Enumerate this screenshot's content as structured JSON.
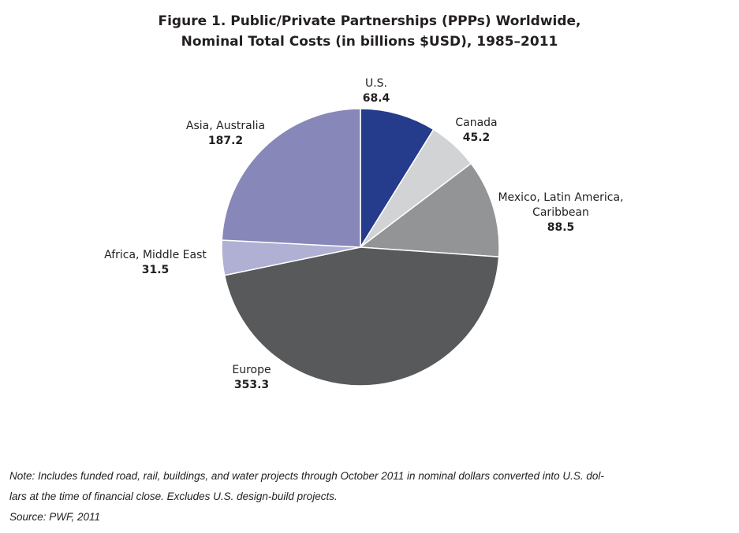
{
  "chart_data": {
    "type": "pie",
    "title_line1": "Figure 1. Public/Private Partnerships (PPPs) Worldwide,",
    "title_line2": "Nominal Total Costs (in billions $USD), 1985–2011",
    "start": "12 o'clock, clockwise",
    "slices": [
      {
        "label": "U.S.",
        "value": 68.4,
        "value_text": "68.4",
        "color": "#253b8b"
      },
      {
        "label": "Canada",
        "value": 45.2,
        "value_text": "45.2",
        "color": "#d2d3d5"
      },
      {
        "label": "Mexico, Latin America, Caribbean",
        "label_line1": "Mexico, Latin America,",
        "label_line2": "Caribbean",
        "value": 88.5,
        "value_text": "88.5",
        "color": "#939496"
      },
      {
        "label": "Europe",
        "value": 353.3,
        "value_text": "353.3",
        "color": "#58595b"
      },
      {
        "label": "Africa, Middle East",
        "value": 31.5,
        "value_text": "31.5",
        "color": "#b0b0d4"
      },
      {
        "label": "Asia, Australia",
        "value": 187.2,
        "value_text": "187.2",
        "color": "#8788b9"
      }
    ]
  },
  "note": {
    "line1": "Note: Includes funded road, rail, buildings, and water projects through October 2011 in nominal dollars converted into U.S. dol-",
    "line2": "lars at the time of financial close. Excludes U.S. design-build projects.",
    "source": "Source: PWF, 2011"
  }
}
